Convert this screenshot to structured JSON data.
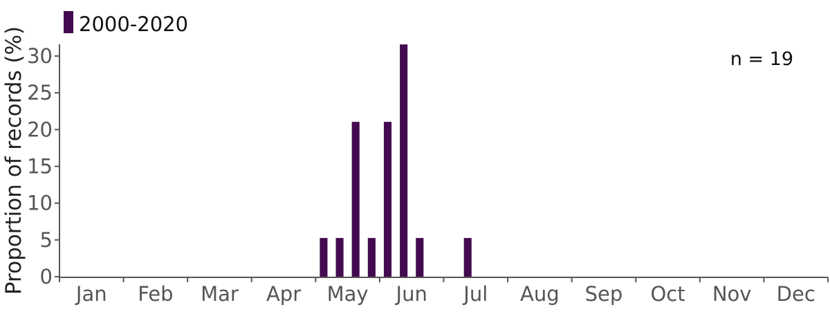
{
  "chart_data": {
    "type": "bar",
    "ylabel": "Proportion of records (%)",
    "ylim": [
      0,
      31.6
    ],
    "yticks": [
      0,
      5,
      10,
      15,
      20,
      25,
      30
    ],
    "months": [
      "Jan",
      "Feb",
      "Mar",
      "Apr",
      "May",
      "Jun",
      "Jul",
      "Aug",
      "Sep",
      "Oct",
      "Nov",
      "Dec"
    ],
    "series": [
      {
        "name": "2000-2020",
        "color": "#440a4f",
        "points": [
          {
            "period": "May wk1",
            "value": 5.26
          },
          {
            "period": "May wk2",
            "value": 5.26
          },
          {
            "period": "May wk3",
            "value": 21.05
          },
          {
            "period": "May wk4",
            "value": 5.26
          },
          {
            "period": "Jun wk1",
            "value": 21.05
          },
          {
            "period": "Jun wk2",
            "value": 31.58
          },
          {
            "period": "Jun wk3",
            "value": 5.26
          },
          {
            "period": "Jul wk2",
            "value": 5.26
          }
        ]
      }
    ],
    "annotation": "n = 19",
    "grid": false,
    "legend_position": "top-left"
  }
}
